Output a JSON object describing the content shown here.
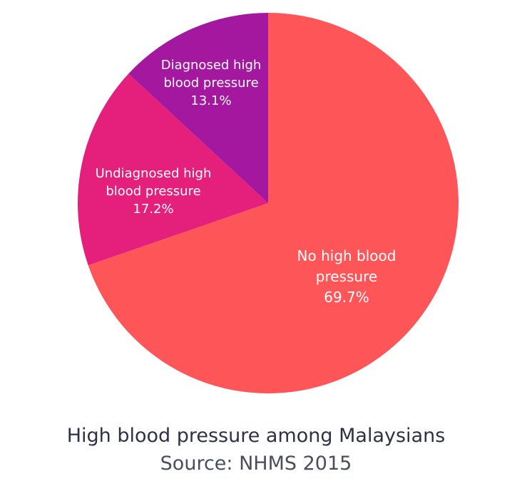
{
  "chart_data": {
    "type": "pie",
    "title": "High blood pressure among Malaysians",
    "subtitle": "Source: NHMS 2015",
    "start": "12 o'clock",
    "direction": "clockwise",
    "slices": [
      {
        "label_lines": [
          "No high blood",
          "pressure"
        ],
        "value": 69.7,
        "value_label": "69.7%",
        "color": "#fe5558"
      },
      {
        "label_lines": [
          "Undiagnosed high",
          "blood pressure"
        ],
        "value": 17.2,
        "value_label": "17.2%",
        "color": "#e41f7c"
      },
      {
        "label_lines": [
          "Diagnosed high",
          "blood pressure"
        ],
        "value": 13.1,
        "value_label": "13.1%",
        "color": "#a3189f"
      }
    ]
  }
}
